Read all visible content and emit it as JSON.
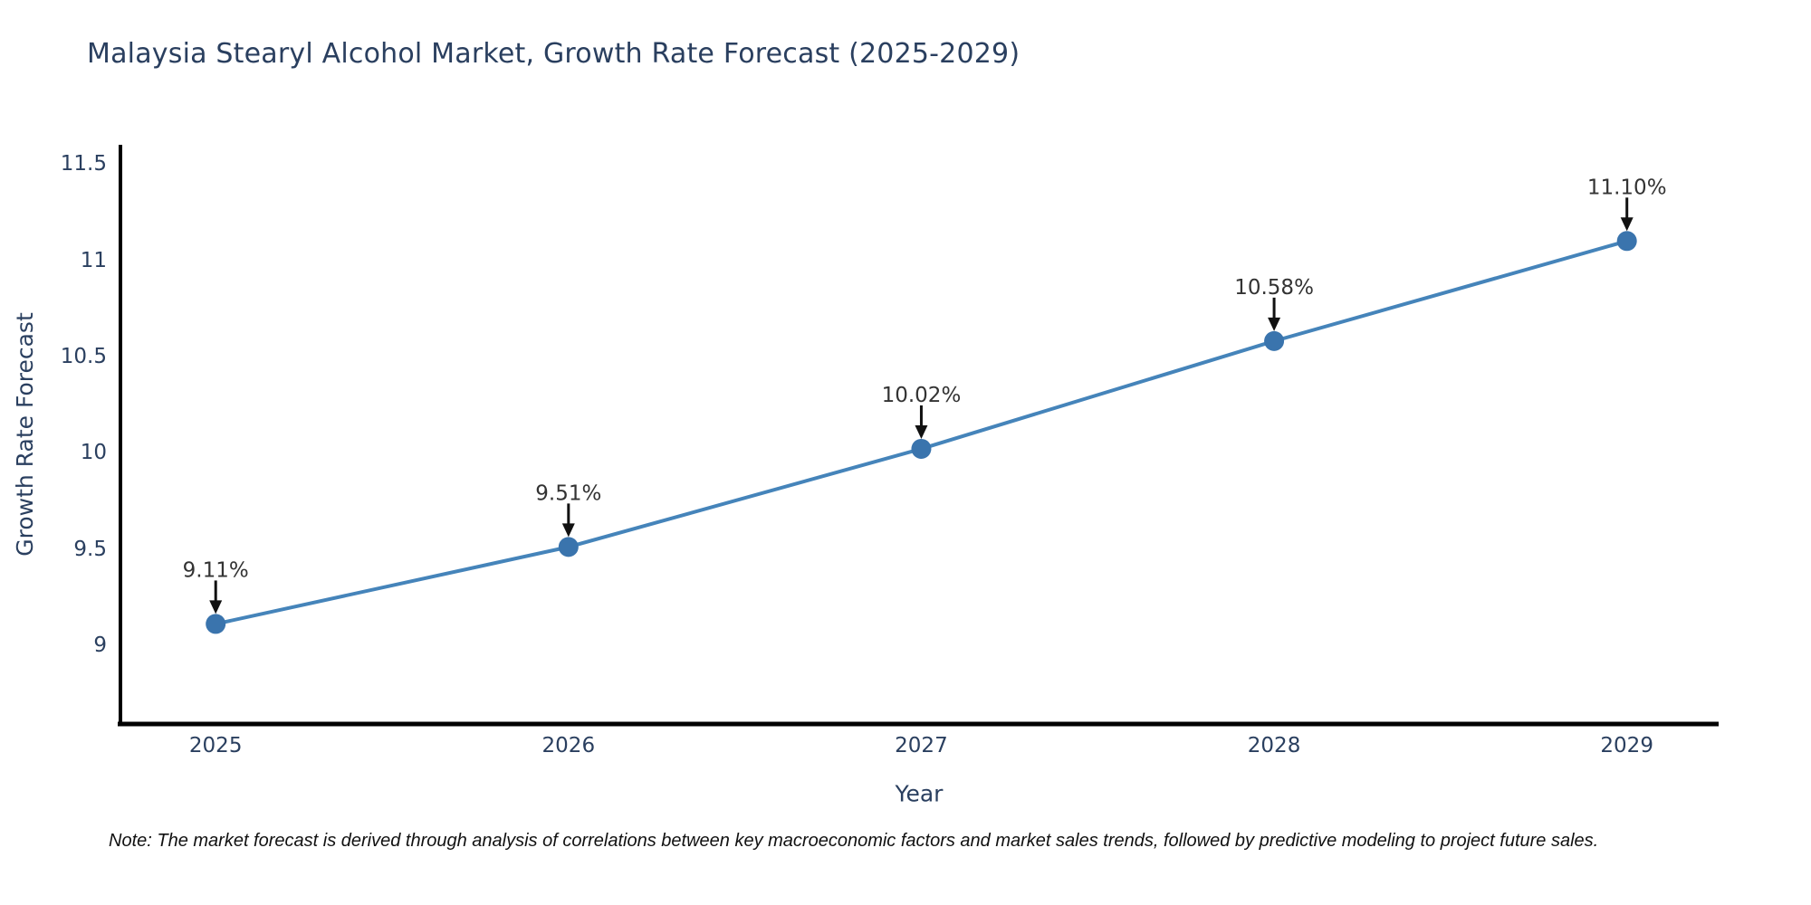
{
  "colors": {
    "heading": "#2a3f5f",
    "tick": "#2a3f5f",
    "axis": "#000000",
    "line": "#4584ba",
    "marker": "#3a74ad",
    "annotation_text": "#333333",
    "annotation_arrow": "#111111",
    "note": "#111111",
    "background": "#ffffff"
  },
  "chart_data": {
    "type": "line",
    "title": "Malaysia Stearyl Alcohol Market, Growth Rate Forecast (2025-2029)",
    "xlabel": "Year",
    "ylabel": "Growth Rate Forecast",
    "series_name": "Growth Rate Forecast",
    "x": [
      2025,
      2026,
      2027,
      2028,
      2029
    ],
    "y": [
      9.11,
      9.51,
      10.02,
      10.58,
      11.1
    ],
    "labels": [
      "9.11%",
      "9.51%",
      "10.02%",
      "10.58%",
      "11.10%"
    ],
    "x_ticks": [
      {
        "value": 2025,
        "label": "2025"
      },
      {
        "value": 2026,
        "label": "2026"
      },
      {
        "value": 2027,
        "label": "2027"
      },
      {
        "value": 2028,
        "label": "2028"
      },
      {
        "value": 2029,
        "label": "2029"
      }
    ],
    "y_ticks": [
      {
        "value": 9,
        "label": "9"
      },
      {
        "value": 9.5,
        "label": "9.5"
      },
      {
        "value": 10,
        "label": "10"
      },
      {
        "value": 10.5,
        "label": "10.5"
      },
      {
        "value": 11,
        "label": "11"
      },
      {
        "value": 11.5,
        "label": "11.5"
      }
    ],
    "xlim": [
      2024.73,
      2029.26
    ],
    "ylim": [
      8.59,
      11.6
    ],
    "grid": false,
    "legend_position": "none",
    "marker_style": "circle",
    "annotation_style": "arrow-down"
  },
  "note": {
    "text": "Note: The market forecast is derived through analysis of correlations between key macroeconomic factors and market sales trends, followed by predictive modeling to project future sales."
  }
}
